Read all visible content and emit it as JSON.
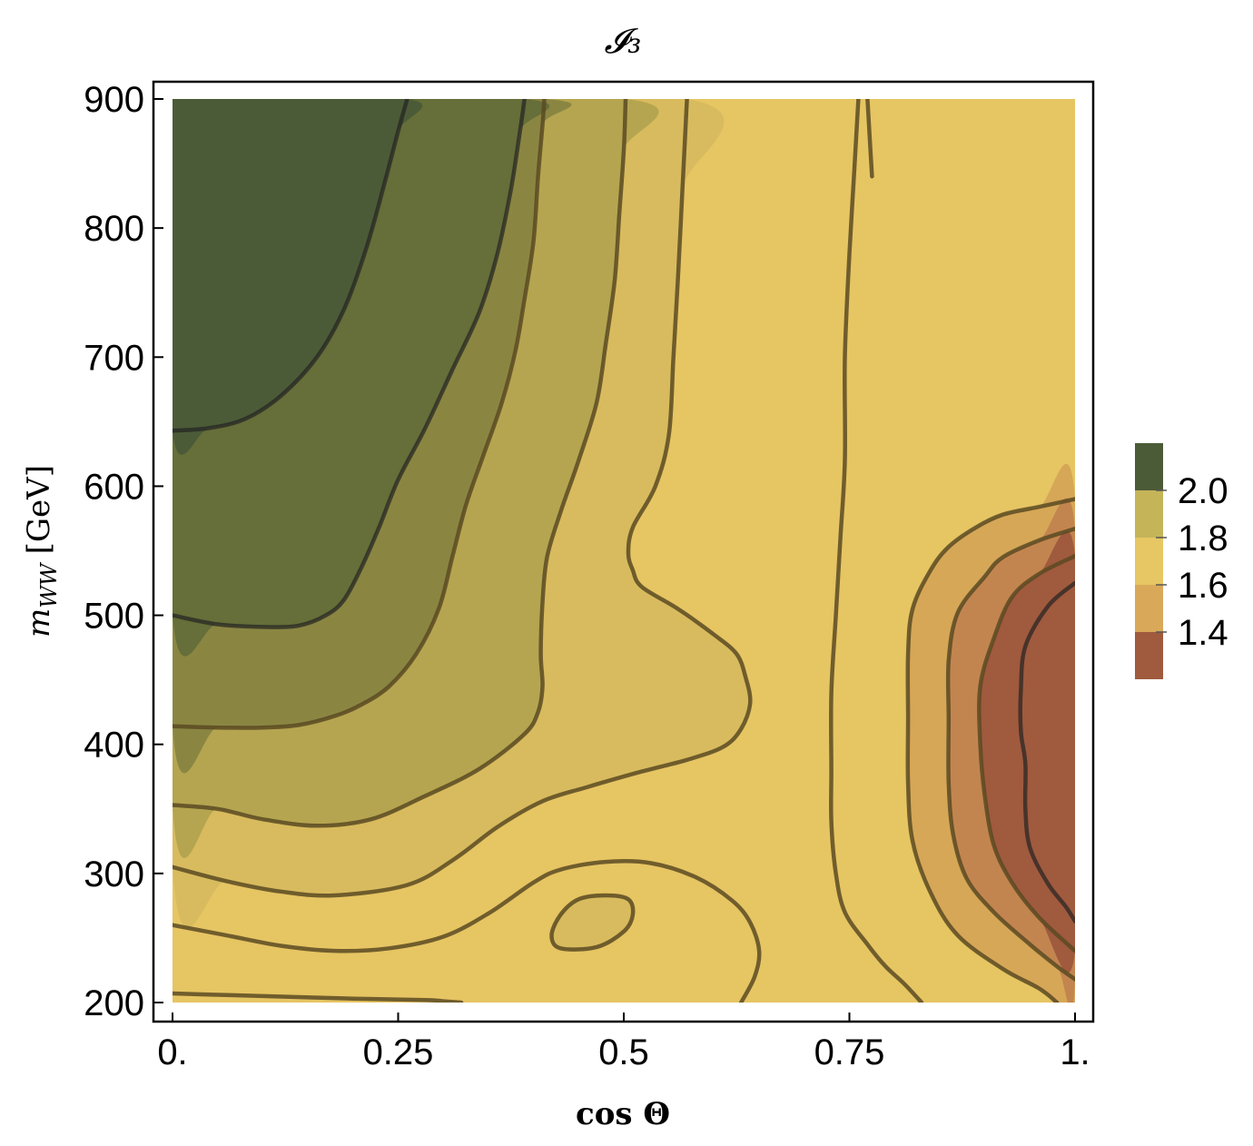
{
  "chart_data": {
    "type": "heatmap",
    "subtype": "filled-contour",
    "title": "𝓘₃",
    "xlabel": "cos Θ",
    "ylabel": "m_WW [GeV]",
    "ylabel_parts": {
      "m": "m",
      "sub": "WW",
      "unit": "[GeV]"
    },
    "xlim": [
      0,
      1
    ],
    "ylim": [
      200,
      900
    ],
    "x_ticks": [
      {
        "value": 0,
        "label": "0."
      },
      {
        "value": 0.25,
        "label": "0.25"
      },
      {
        "value": 0.5,
        "label": "0.5"
      },
      {
        "value": 0.75,
        "label": "0.75"
      },
      {
        "value": 1,
        "label": "1."
      }
    ],
    "y_ticks": [
      {
        "value": 200,
        "label": "200"
      },
      {
        "value": 300,
        "label": "300"
      },
      {
        "value": 400,
        "label": "400"
      },
      {
        "value": 500,
        "label": "500"
      },
      {
        "value": 600,
        "label": "600"
      },
      {
        "value": 700,
        "label": "700"
      },
      {
        "value": 800,
        "label": "800"
      },
      {
        "value": 900,
        "label": "900"
      }
    ],
    "colorbar": {
      "ticks": [
        "2.0",
        "1.8",
        "1.6",
        "1.4"
      ],
      "bands": [
        "#4c5b37",
        "#c5b458",
        "#e6c763",
        "#d9a959",
        "#a05a3e"
      ]
    },
    "fill_colors": {
      "darkest": "#4c5b37",
      "dark": "#666e39",
      "olive": "#8a8642",
      "olive_light": "#b5a550",
      "sand": "#d8bb5e",
      "base": "#e6c563",
      "orange1": "#d6a757",
      "orange2": "#c3854f",
      "red": "#a05a3e"
    },
    "contours": [
      {
        "level": "c1",
        "fill": "darkest",
        "closed": true,
        "points": [
          [
            0,
            643
          ],
          [
            0.04,
            645
          ],
          [
            0.08,
            652
          ],
          [
            0.12,
            670
          ],
          [
            0.16,
            700
          ],
          [
            0.19,
            737
          ],
          [
            0.215,
            785
          ],
          [
            0.235,
            835
          ],
          [
            0.25,
            875
          ],
          [
            0.26,
            900
          ],
          [
            0,
            900
          ]
        ]
      },
      {
        "level": "c2",
        "fill": "dark",
        "closed": true,
        "points": [
          [
            0,
            500
          ],
          [
            0.05,
            493
          ],
          [
            0.1,
            491
          ],
          [
            0.14,
            492
          ],
          [
            0.17,
            500
          ],
          [
            0.19,
            512
          ],
          [
            0.21,
            538
          ],
          [
            0.23,
            570
          ],
          [
            0.25,
            605
          ],
          [
            0.28,
            645
          ],
          [
            0.31,
            690
          ],
          [
            0.34,
            735
          ],
          [
            0.36,
            780
          ],
          [
            0.375,
            830
          ],
          [
            0.385,
            875
          ],
          [
            0.39,
            900
          ],
          [
            0,
            900
          ]
        ]
      },
      {
        "level": "c3",
        "fill": "olive",
        "closed": true,
        "points": [
          [
            0,
            414
          ],
          [
            0.05,
            413
          ],
          [
            0.1,
            413
          ],
          [
            0.14,
            415
          ],
          [
            0.18,
            422
          ],
          [
            0.21,
            431
          ],
          [
            0.24,
            445
          ],
          [
            0.27,
            470
          ],
          [
            0.295,
            505
          ],
          [
            0.31,
            545
          ],
          [
            0.325,
            585
          ],
          [
            0.345,
            625
          ],
          [
            0.365,
            665
          ],
          [
            0.38,
            705
          ],
          [
            0.39,
            745
          ],
          [
            0.4,
            790
          ],
          [
            0.405,
            840
          ],
          [
            0.41,
            880
          ],
          [
            0.412,
            900
          ],
          [
            0,
            900
          ]
        ]
      },
      {
        "level": "c4",
        "fill": "olive_light",
        "closed": true,
        "points": [
          [
            0,
            353
          ],
          [
            0.05,
            350
          ],
          [
            0.1,
            342
          ],
          [
            0.16,
            337
          ],
          [
            0.22,
            342
          ],
          [
            0.28,
            360
          ],
          [
            0.34,
            381
          ],
          [
            0.39,
            408
          ],
          [
            0.405,
            425
          ],
          [
            0.41,
            445
          ],
          [
            0.408,
            470
          ],
          [
            0.41,
            510
          ],
          [
            0.415,
            545
          ],
          [
            0.43,
            580
          ],
          [
            0.45,
            620
          ],
          [
            0.47,
            665
          ],
          [
            0.48,
            710
          ],
          [
            0.49,
            760
          ],
          [
            0.495,
            810
          ],
          [
            0.5,
            860
          ],
          [
            0.502,
            900
          ],
          [
            0,
            900
          ]
        ]
      },
      {
        "level": "c5",
        "fill": "sand",
        "closed": true,
        "points": [
          [
            0,
            305
          ],
          [
            0.06,
            294
          ],
          [
            0.12,
            286
          ],
          [
            0.18,
            283
          ],
          [
            0.26,
            291
          ],
          [
            0.31,
            310
          ],
          [
            0.36,
            336
          ],
          [
            0.41,
            356
          ],
          [
            0.46,
            367
          ],
          [
            0.52,
            379
          ],
          [
            0.57,
            388
          ],
          [
            0.61,
            398
          ],
          [
            0.63,
            412
          ],
          [
            0.64,
            432
          ],
          [
            0.635,
            452
          ],
          [
            0.625,
            470
          ],
          [
            0.6,
            485
          ],
          [
            0.56,
            505
          ],
          [
            0.52,
            522
          ],
          [
            0.51,
            535
          ],
          [
            0.505,
            548
          ],
          [
            0.51,
            568
          ],
          [
            0.535,
            600
          ],
          [
            0.55,
            640
          ],
          [
            0.555,
            700
          ],
          [
            0.56,
            760
          ],
          [
            0.565,
            830
          ],
          [
            0.57,
            900
          ],
          [
            0,
            900
          ]
        ]
      },
      {
        "level": "c6",
        "fill": "base",
        "closed": false,
        "points": [
          [
            0,
            260
          ],
          [
            0.06,
            252
          ],
          [
            0.12,
            244
          ],
          [
            0.18,
            240
          ],
          [
            0.24,
            242
          ],
          [
            0.3,
            251
          ],
          [
            0.35,
            269
          ],
          [
            0.4,
            293
          ],
          [
            0.43,
            303
          ],
          [
            0.48,
            309
          ],
          [
            0.53,
            308
          ],
          [
            0.58,
            297
          ],
          [
            0.62,
            279
          ],
          [
            0.64,
            262
          ],
          [
            0.65,
            240
          ],
          [
            0.645,
            220
          ],
          [
            0.63,
            200
          ]
        ]
      },
      {
        "level": "c7",
        "fill": "base",
        "closed": false,
        "points": [
          [
            0,
            207
          ],
          [
            0.05,
            206
          ],
          [
            0.1,
            205
          ],
          [
            0.2,
            203
          ],
          [
            0.28,
            202
          ],
          [
            0.3,
            201
          ],
          [
            0.32,
            200
          ]
        ]
      },
      {
        "level": "c8",
        "fill": "sand",
        "closed": true,
        "points": [
          [
            0.42,
            252
          ],
          [
            0.43,
            268
          ],
          [
            0.45,
            280
          ],
          [
            0.48,
            283
          ],
          [
            0.505,
            280
          ],
          [
            0.51,
            268
          ],
          [
            0.5,
            255
          ],
          [
            0.47,
            243
          ],
          [
            0.43,
            242
          ]
        ]
      },
      {
        "level": "c9",
        "fill": "base",
        "closed": false,
        "points": [
          [
            0.76,
            900
          ],
          [
            0.755,
            840
          ],
          [
            0.75,
            780
          ],
          [
            0.745,
            700
          ],
          [
            0.745,
            620
          ],
          [
            0.74,
            560
          ],
          [
            0.735,
            500
          ],
          [
            0.73,
            440
          ],
          [
            0.73,
            380
          ],
          [
            0.73,
            340
          ],
          [
            0.735,
            300
          ],
          [
            0.745,
            270
          ],
          [
            0.77,
            245
          ],
          [
            0.79,
            228
          ],
          [
            0.81,
            215
          ],
          [
            0.83,
            200
          ]
        ]
      },
      {
        "level": "c10",
        "fill": "base",
        "closed": false,
        "points": [
          [
            0.77,
            900
          ],
          [
            0.775,
            840
          ]
        ]
      },
      {
        "level": "c11",
        "fill": "orange1",
        "closed": true,
        "points": [
          [
            1,
            590
          ],
          [
            0.96,
            584
          ],
          [
            0.92,
            578
          ],
          [
            0.89,
            568
          ],
          [
            0.86,
            553
          ],
          [
            0.84,
            535
          ],
          [
            0.82,
            505
          ],
          [
            0.815,
            470
          ],
          [
            0.815,
            420
          ],
          [
            0.815,
            370
          ],
          [
            0.82,
            325
          ],
          [
            0.84,
            285
          ],
          [
            0.87,
            252
          ],
          [
            0.92,
            226
          ],
          [
            0.96,
            211
          ],
          [
            0.98,
            200
          ],
          [
            1,
            200
          ]
        ]
      },
      {
        "level": "c12",
        "fill": "orange2",
        "closed": true,
        "points": [
          [
            1,
            567
          ],
          [
            0.96,
            558
          ],
          [
            0.92,
            545
          ],
          [
            0.9,
            530
          ],
          [
            0.87,
            502
          ],
          [
            0.86,
            465
          ],
          [
            0.86,
            420
          ],
          [
            0.86,
            370
          ],
          [
            0.865,
            330
          ],
          [
            0.88,
            296
          ],
          [
            0.91,
            270
          ],
          [
            0.95,
            245
          ],
          [
            0.98,
            228
          ],
          [
            1,
            218
          ]
        ]
      },
      {
        "level": "c13",
        "fill": "red",
        "closed": true,
        "points": [
          [
            1,
            546
          ],
          [
            0.96,
            532
          ],
          [
            0.93,
            514
          ],
          [
            0.91,
            482
          ],
          [
            0.895,
            445
          ],
          [
            0.895,
            400
          ],
          [
            0.9,
            360
          ],
          [
            0.91,
            322
          ],
          [
            0.93,
            293
          ],
          [
            0.96,
            266
          ],
          [
            1,
            240
          ]
        ]
      },
      {
        "level": "c14",
        "fill": "red",
        "closed": true,
        "points": [
          [
            1,
            525
          ],
          [
            0.97,
            507
          ],
          [
            0.945,
            476
          ],
          [
            0.94,
            443
          ],
          [
            0.94,
            410
          ],
          [
            0.945,
            385
          ],
          [
            0.945,
            350
          ],
          [
            0.95,
            320
          ],
          [
            0.97,
            292
          ],
          [
            0.99,
            274
          ],
          [
            1,
            263
          ]
        ]
      }
    ]
  }
}
